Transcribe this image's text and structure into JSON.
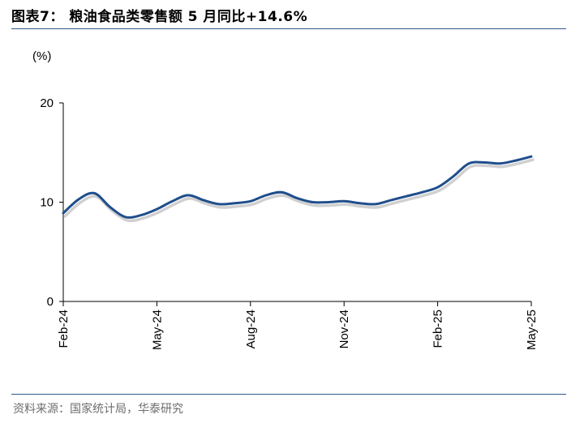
{
  "header": {
    "title": "图表7：  粮油食品类零售额 5 月同比+14.6%"
  },
  "footer": {
    "source": "资料来源：国家统计局，华泰研究"
  },
  "chart_data": {
    "type": "line",
    "title": "",
    "unit_label": "(%)",
    "xlabel": "",
    "ylabel": "",
    "ylim": [
      0,
      20
    ],
    "yticks": [
      0,
      10,
      20
    ],
    "x_tick_labels": [
      "Feb-24",
      "May-24",
      "Aug-24",
      "Nov-24",
      "Feb-25",
      "May-25"
    ],
    "grid": false,
    "legend": "none",
    "colors": {
      "line": "#1f4e8c",
      "shadow": "#c8c8c8",
      "axis": "#000000",
      "rule": "#2f5b8c"
    },
    "series": [
      {
        "x": [
          "2024-02",
          "2024-02",
          "2024-03",
          "2024-03",
          "2024-04",
          "2024-04",
          "2024-05",
          "2024-05",
          "2024-06",
          "2024-06",
          "2024-07",
          "2024-07",
          "2024-08",
          "2024-08",
          "2024-09",
          "2024-09",
          "2024-10",
          "2024-10",
          "2024-11",
          "2024-11",
          "2024-12",
          "2024-12",
          "2025-01",
          "2025-01",
          "2025-02",
          "2025-02",
          "2025-03",
          "2025-03",
          "2025-04",
          "2025-04",
          "2025-05"
        ],
        "values": [
          8.9,
          10.3,
          10.9,
          9.5,
          8.5,
          8.7,
          9.3,
          10.1,
          10.7,
          10.2,
          9.8,
          9.9,
          10.1,
          10.7,
          11.0,
          10.4,
          10.0,
          10.0,
          10.1,
          9.9,
          9.8,
          10.2,
          10.6,
          11.0,
          11.5,
          12.6,
          13.9,
          14.0,
          13.9,
          14.2,
          14.6
        ]
      }
    ]
  }
}
